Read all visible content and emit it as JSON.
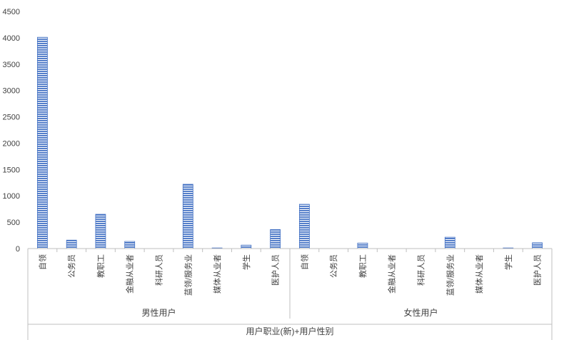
{
  "chart_data": {
    "type": "bar",
    "title": "",
    "ylabel": "",
    "xlabel": "用户职业(新)+用户性别",
    "ylim": [
      0,
      4500
    ],
    "yticks": [
      0,
      500,
      1000,
      1500,
      2000,
      2500,
      3000,
      3500,
      4000,
      4500
    ],
    "grid": false,
    "legend": "none",
    "bar_color": "#4472C4",
    "bar_pattern": "horizontal-stripes",
    "categories": [
      "自领",
      "公务员",
      "教职工",
      "金融从业者",
      "科研人员",
      "蓝领/服务业",
      "媒体从业者",
      "学生",
      "医护人员"
    ],
    "groups": [
      {
        "name": "男性用户",
        "values": [
          4010,
          160,
          650,
          135,
          0,
          1220,
          12,
          65,
          360
        ]
      },
      {
        "name": "女性用户",
        "values": [
          840,
          0,
          105,
          0,
          0,
          215,
          0,
          12,
          110
        ]
      }
    ]
  }
}
